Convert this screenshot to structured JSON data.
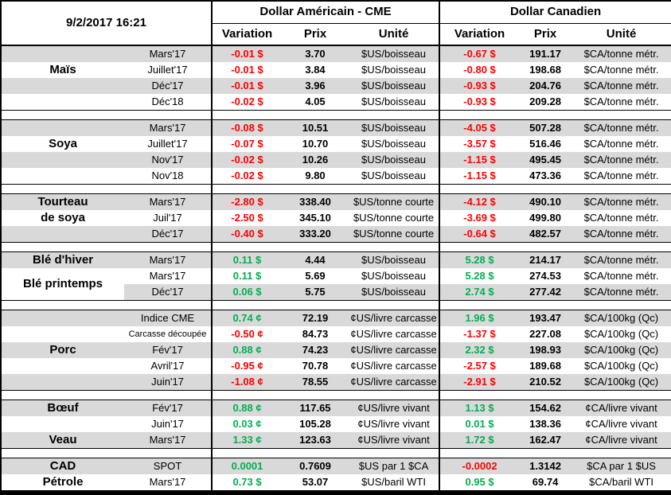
{
  "colors": {
    "positive": "#00B050",
    "negative": "#FF0000",
    "stripe": "#D9D9D9",
    "border": "#000000"
  },
  "table": {
    "timestamp": "9/2/2017 16:21",
    "columns": {
      "us_group": "Dollar Américain - CME",
      "ca_group": "Dollar Canadien",
      "variation": "Variation",
      "prix": "Prix",
      "unite": "Unité"
    },
    "sections": [
      {
        "rows": [
          {
            "label": "",
            "month": "Mars'17",
            "vus": "-0.01 $",
            "pus": "3.70",
            "uus": "$US/boisseau",
            "vca": "-0.67 $",
            "pca": "191.17",
            "uca": "$CA/tonne métr."
          },
          {
            "label": "Maïs",
            "month": "Juillet'17",
            "vus": "-0.01 $",
            "pus": "3.84",
            "uus": "$US/boisseau",
            "vca": "-0.80 $",
            "pca": "198.68",
            "uca": "$CA/tonne métr."
          },
          {
            "label": "",
            "month": "Déc'17",
            "vus": "-0.01 $",
            "pus": "3.96",
            "uus": "$US/boisseau",
            "vca": "-0.93 $",
            "pca": "204.76",
            "uca": "$CA/tonne métr."
          },
          {
            "label": "",
            "month": "Déc'18",
            "vus": "-0.02 $",
            "pus": "4.05",
            "uus": "$US/boisseau",
            "vca": "-0.93 $",
            "pca": "209.28",
            "uca": "$CA/tonne métr."
          }
        ]
      },
      {
        "rows": [
          {
            "label": "",
            "month": "Mars'17",
            "vus": "-0.08 $",
            "pus": "10.51",
            "uus": "$US/boisseau",
            "vca": "-4.05 $",
            "pca": "507.28",
            "uca": "$CA/tonne métr."
          },
          {
            "label": "Soya",
            "month": "Juillet'17",
            "vus": "-0.07 $",
            "pus": "10.70",
            "uus": "$US/boisseau",
            "vca": "-3.57 $",
            "pca": "516.46",
            "uca": "$CA/tonne métr."
          },
          {
            "label": "",
            "month": "Nov'17",
            "vus": "-0.02 $",
            "pus": "10.26",
            "uus": "$US/boisseau",
            "vca": "-1.15 $",
            "pca": "495.45",
            "uca": "$CA/tonne métr."
          },
          {
            "label": "",
            "month": "Nov'18",
            "vus": "-0.02 $",
            "pus": "9.80",
            "uus": "$US/boisseau",
            "vca": "-1.15 $",
            "pca": "473.36",
            "uca": "$CA/tonne métr."
          }
        ]
      },
      {
        "rows": [
          {
            "label": "Tourteau",
            "month": "Mars'17",
            "vus": "-2.80 $",
            "pus": "338.40",
            "uus": "$US/tonne courte",
            "vca": "-4.12 $",
            "pca": "490.10",
            "uca": "$CA/tonne métr."
          },
          {
            "label": "de soya",
            "month": "Juil'17",
            "vus": "-2.50 $",
            "pus": "345.10",
            "uus": "$US/tonne courte",
            "vca": "-3.69 $",
            "pca": "499.80",
            "uca": "$CA/tonne métr."
          },
          {
            "label": "",
            "month": "Déc'17",
            "vus": "-0.40 $",
            "pus": "333.20",
            "uus": "$US/tonne courte",
            "vca": "-0.64 $",
            "pca": "482.57",
            "uca": "$CA/tonne métr."
          }
        ]
      },
      {
        "rows": [
          {
            "label": "Blé d'hiver",
            "month": "Mars'17",
            "vus": "0.11 $",
            "pus": "4.44",
            "uus": "$US/boisseau",
            "vca": "5.28 $",
            "pca": "214.17",
            "uca": "$CA/tonne métr."
          },
          {
            "label": "Blé printemps",
            "label_rowspan": 2,
            "month": "Mars'17",
            "vus": "0.11 $",
            "pus": "5.69",
            "uus": "$US/boisseau",
            "vca": "5.28 $",
            "pca": "274.53",
            "uca": "$CA/tonne métr."
          },
          {
            "label": null,
            "month": "Déc'17",
            "vus": "0.06 $",
            "pus": "5.75",
            "uus": "$US/boisseau",
            "vca": "2.74 $",
            "pca": "277.42",
            "uca": "$CA/tonne métr."
          }
        ]
      },
      {
        "rows": [
          {
            "label": "",
            "month": "Indice CME",
            "vus": "0.74 ¢",
            "pus": "72.19",
            "uus": "¢US/livre carcasse",
            "vca": "1.96 $",
            "pca": "193.47",
            "uca": "$CA/100kg (Qc)"
          },
          {
            "label": "",
            "month": "Carcasse découpée",
            "vus": "-0.50 ¢",
            "pus": "84.73",
            "uus": "¢US/livre carcasse",
            "vca": "-1.37 $",
            "pca": "227.08",
            "uca": "$CA/100kg (Qc)"
          },
          {
            "label": "Porc",
            "month": "Fév'17",
            "vus": "0.88 ¢",
            "pus": "74.23",
            "uus": "¢US/livre carcasse",
            "vca": "2.32 $",
            "pca": "198.93",
            "uca": "$CA/100kg (Qc)"
          },
          {
            "label": "",
            "month": "Avril'17",
            "vus": "-0.95 ¢",
            "pus": "70.78",
            "uus": "¢US/livre carcasse",
            "vca": "-2.57 $",
            "pca": "189.68",
            "uca": "$CA/100kg (Qc)"
          },
          {
            "label": "",
            "month": "Juin'17",
            "vus": "-1.08 ¢",
            "pus": "78.55",
            "uus": "¢US/livre carcasse",
            "vca": "-2.91 $",
            "pca": "210.52",
            "uca": "$CA/100kg (Qc)"
          }
        ]
      },
      {
        "rows": [
          {
            "label": "Bœuf",
            "month": "Fév'17",
            "vus": "0.88 ¢",
            "pus": "117.65",
            "uus": "¢US/livre vivant",
            "vca": "1.13 $",
            "pca": "154.62",
            "uca": "¢CA/livre vivant"
          },
          {
            "label": "",
            "month": "Juin'17",
            "vus": "0.03 ¢",
            "pus": "105.28",
            "uus": "¢US/livre vivant",
            "vca": "0.01 $",
            "pca": "138.36",
            "uca": "¢CA/livre vivant"
          },
          {
            "label": "Veau",
            "month": "Mars'17",
            "vus": "1.33 ¢",
            "pus": "123.63",
            "uus": "¢US/livre vivant",
            "vca": "1.72 $",
            "pca": "162.47",
            "uca": "¢CA/livre vivant"
          }
        ]
      },
      {
        "rows": [
          {
            "label": "CAD",
            "month": "SPOT",
            "vus": "0.0001",
            "pus": "0.7609",
            "uus": "$US par 1 $CA",
            "vca": "-0.0002",
            "pca": "1.3142",
            "uca": "$CA par 1 $US"
          },
          {
            "label": "Pétrole",
            "month": "Mars'17",
            "vus": "0.73 $",
            "pus": "53.07",
            "uus": "$US/baril WTI",
            "vca": "0.95 $",
            "pca": "69.74",
            "uca": "$CA/baril WTI"
          }
        ]
      }
    ]
  }
}
